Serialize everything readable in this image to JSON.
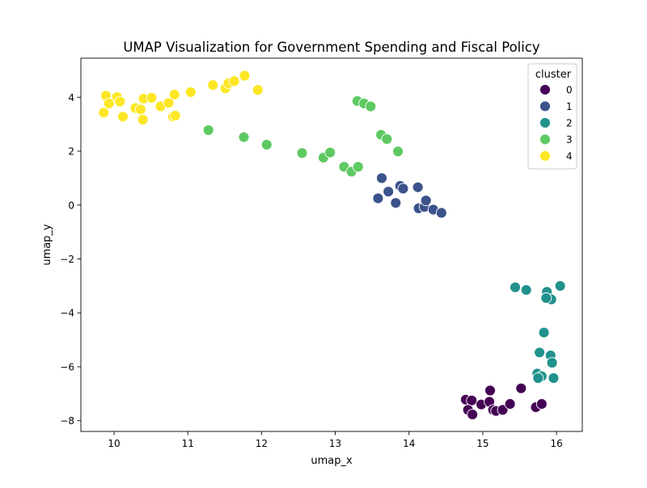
{
  "chart_data": {
    "type": "scatter",
    "title": "UMAP Visualization for Government Spending and Fiscal Policy",
    "xlabel": "umap_x",
    "ylabel": "umap_y",
    "xlim": [
      9.55,
      16.35
    ],
    "ylim": [
      -8.4,
      5.45
    ],
    "xticks": [
      10,
      11,
      12,
      13,
      14,
      15,
      16
    ],
    "yticks": [
      -8,
      -6,
      -4,
      -2,
      0,
      2,
      4
    ],
    "grid": false,
    "legend": {
      "title": "cluster",
      "placement": "top-right"
    },
    "series": [
      {
        "name": "0",
        "color": "#440154",
        "points": [
          [
            14.77,
            -7.22
          ],
          [
            14.85,
            -7.25
          ],
          [
            14.8,
            -7.6
          ],
          [
            14.86,
            -7.77
          ],
          [
            14.98,
            -7.4
          ],
          [
            15.09,
            -7.3
          ],
          [
            15.1,
            -6.88
          ],
          [
            15.14,
            -7.6
          ],
          [
            15.18,
            -7.64
          ],
          [
            15.27,
            -7.6
          ],
          [
            15.37,
            -7.38
          ],
          [
            15.52,
            -6.8
          ],
          [
            15.72,
            -7.5
          ],
          [
            15.8,
            -7.38
          ]
        ]
      },
      {
        "name": "1",
        "color": "#3b528b",
        "points": [
          [
            13.58,
            0.25
          ],
          [
            13.63,
            1.0
          ],
          [
            13.72,
            0.5
          ],
          [
            13.82,
            0.08
          ],
          [
            13.88,
            0.71
          ],
          [
            13.92,
            0.61
          ],
          [
            14.12,
            0.66
          ],
          [
            14.13,
            -0.12
          ],
          [
            14.21,
            -0.07
          ],
          [
            14.23,
            0.17
          ],
          [
            14.33,
            -0.17
          ],
          [
            14.44,
            -0.29
          ]
        ]
      },
      {
        "name": "2",
        "color": "#21918c",
        "points": [
          [
            15.44,
            -3.05
          ],
          [
            15.59,
            -3.15
          ],
          [
            15.87,
            -3.22
          ],
          [
            15.93,
            -3.5
          ],
          [
            15.86,
            -3.45
          ],
          [
            16.05,
            -3.0
          ],
          [
            15.83,
            -4.73
          ],
          [
            15.77,
            -5.47
          ],
          [
            15.92,
            -5.58
          ],
          [
            15.94,
            -5.85
          ],
          [
            15.74,
            -6.25
          ],
          [
            15.8,
            -6.35
          ],
          [
            15.96,
            -6.42
          ],
          [
            15.75,
            -6.42
          ]
        ]
      },
      {
        "name": "3",
        "color": "#5ec962",
        "points": [
          [
            11.28,
            2.78
          ],
          [
            11.76,
            2.52
          ],
          [
            12.07,
            2.24
          ],
          [
            12.55,
            1.93
          ],
          [
            12.84,
            1.76
          ],
          [
            12.93,
            1.95
          ],
          [
            13.12,
            1.42
          ],
          [
            13.22,
            1.24
          ],
          [
            13.31,
            1.42
          ],
          [
            13.3,
            3.86
          ],
          [
            13.39,
            3.77
          ],
          [
            13.48,
            3.66
          ],
          [
            13.62,
            2.61
          ],
          [
            13.7,
            2.45
          ],
          [
            13.85,
            1.99
          ]
        ]
      },
      {
        "name": "4",
        "color": "#fde725",
        "points": [
          [
            9.86,
            3.43
          ],
          [
            9.89,
            4.06
          ],
          [
            9.93,
            3.77
          ],
          [
            10.04,
            4.01
          ],
          [
            10.08,
            3.84
          ],
          [
            10.12,
            3.28
          ],
          [
            10.29,
            3.6
          ],
          [
            10.36,
            3.55
          ],
          [
            10.39,
            3.17
          ],
          [
            10.4,
            3.95
          ],
          [
            10.51,
            3.98
          ],
          [
            10.63,
            3.66
          ],
          [
            10.74,
            3.79
          ],
          [
            10.8,
            3.28
          ],
          [
            10.82,
            4.1
          ],
          [
            10.83,
            3.32
          ],
          [
            11.04,
            4.19
          ],
          [
            11.34,
            4.45
          ],
          [
            11.51,
            4.33
          ],
          [
            11.55,
            4.52
          ],
          [
            11.63,
            4.6
          ],
          [
            11.77,
            4.8
          ],
          [
            11.95,
            4.27
          ]
        ]
      }
    ]
  }
}
